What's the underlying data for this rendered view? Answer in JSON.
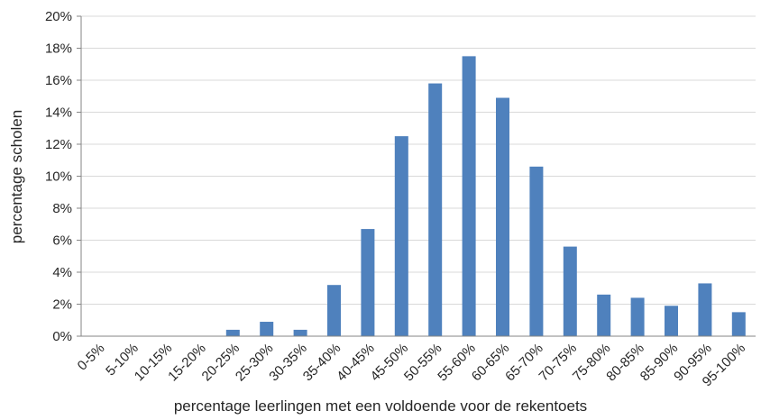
{
  "chart_data": {
    "type": "bar",
    "title": "",
    "xlabel": "percentage leerlingen met een voldoende voor de rekentoets",
    "ylabel": "percentage scholen",
    "ylim": [
      0,
      20
    ],
    "y_ticks": [
      "0%",
      "2%",
      "4%",
      "6%",
      "8%",
      "10%",
      "12%",
      "14%",
      "16%",
      "18%",
      "20%"
    ],
    "grid": true,
    "legend": "none",
    "bar_color": "#4f81bd",
    "categories": [
      "0-5%",
      "5-10%",
      "10-15%",
      "15-20%",
      "20-25%",
      "25-30%",
      "30-35%",
      "35-40%",
      "40-45%",
      "45-50%",
      "50-55%",
      "55-60%",
      "60-65%",
      "65-70%",
      "70-75%",
      "75-80%",
      "80-85%",
      "85-90%",
      "90-95%",
      "95-100%"
    ],
    "values": [
      0,
      0,
      0,
      0,
      0.4,
      0.9,
      0.4,
      3.2,
      6.7,
      12.5,
      15.8,
      17.5,
      14.9,
      10.6,
      5.6,
      2.6,
      2.4,
      1.9,
      3.3,
      1.5
    ]
  }
}
